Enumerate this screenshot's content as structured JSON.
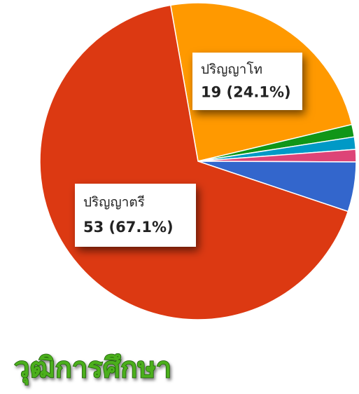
{
  "chart_data": {
    "type": "pie",
    "title": "วุฒิการศึกษา",
    "categories": [
      "ปริญญาโท",
      null,
      null,
      null,
      null,
      "ปริญญาตรี"
    ],
    "values": [
      19,
      1,
      1,
      1,
      4,
      53
    ],
    "value_labels": [
      "19 (24.1%)",
      null,
      null,
      null,
      null,
      "53 (67.1%)"
    ],
    "colors": [
      "#ff9900",
      "#109618",
      "#0099c6",
      "#dd4477",
      "#3366cc",
      "#dc3912"
    ]
  }
}
